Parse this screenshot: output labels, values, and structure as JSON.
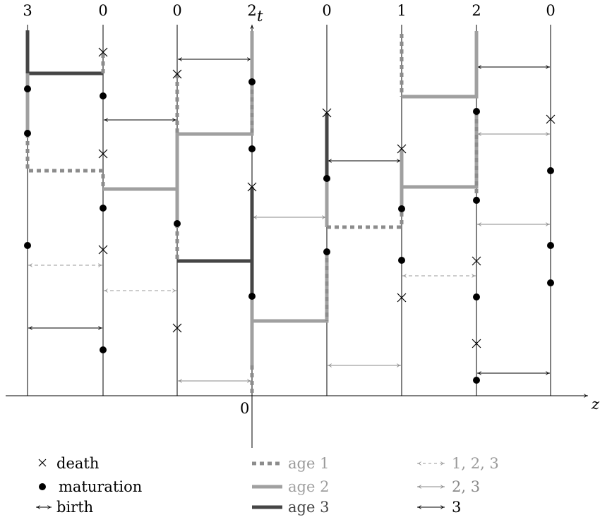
{
  "axis": {
    "time_label": "t",
    "space_label": "z",
    "origin_label": "0"
  },
  "colors": {
    "age1": "#8c8c8c",
    "age2": "#a0a0a0",
    "age3": "#454545",
    "arrow_123": "#9a9a9a",
    "arrow_23": "#8a8a8a",
    "arrow_3": "#000000",
    "mark": "#000000"
  },
  "site_labels": [
    "3",
    "0",
    "0",
    "2",
    "0",
    "1",
    "2",
    "0"
  ],
  "legend": {
    "death": "death",
    "maturation": "maturation",
    "birth": "birth",
    "age1": "age 1",
    "age2": "age 2",
    "age3": "age 3",
    "arrow_123": "1, 2, 3",
    "arrow_23": "2, 3",
    "arrow_3": "3"
  }
}
